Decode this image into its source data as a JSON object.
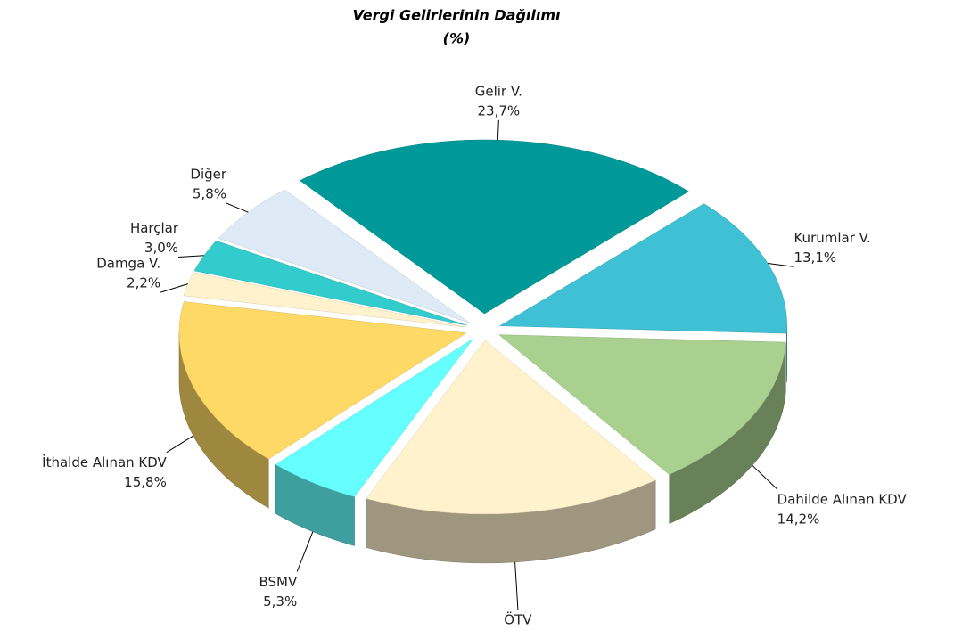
{
  "chart_data": {
    "type": "pie",
    "title": "Vergi Gelirlerinin Dağılımı",
    "subtitle": "(%)",
    "categories": [
      "Gelir V.",
      "Kurumlar V.",
      "Dahilde Alınan KDV",
      "ÖTV",
      "BSMV",
      "İthalde Alınan KDV",
      "Damga V.",
      "Harçlar",
      "Diğer"
    ],
    "values": [
      23.7,
      13.1,
      14.2,
      16.9,
      5.3,
      15.8,
      2.2,
      3.0,
      5.8
    ],
    "value_labels": [
      "23,7%",
      "13,1%",
      "14,2%",
      "16,9%",
      "5,3%",
      "15,8%",
      "2,2%",
      "3,0%",
      "5,8%"
    ],
    "colors": [
      "#009999",
      "#40c0d4",
      "#a9d08e",
      "#fff2cc",
      "#66ffff",
      "#ffd966",
      "#fff2cc",
      "#33cccc",
      "#deebf7"
    ]
  }
}
